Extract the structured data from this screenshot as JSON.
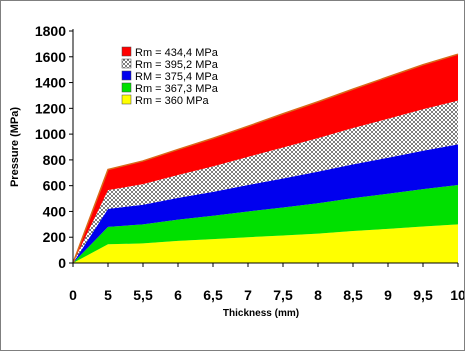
{
  "chart_data": {
    "type": "area",
    "title": "",
    "xlabel": "Thickness (mm)",
    "ylabel": "Pressure (MPa)",
    "stacking": "stacked",
    "x": [
      0,
      5,
      5.5,
      6,
      6.5,
      7,
      7.5,
      8,
      8.5,
      9,
      9.5,
      10
    ],
    "x_tick_labels": [
      "0",
      "5",
      "5,5",
      "6",
      "6,5",
      "7",
      "7,5",
      "8",
      "8,5",
      "9",
      "9,5",
      "10"
    ],
    "xlim": [
      0,
      10
    ],
    "ylim": [
      0,
      1800
    ],
    "y_ticks": [
      0,
      200,
      400,
      600,
      800,
      1000,
      1200,
      1400,
      1600,
      1800
    ],
    "grid": false,
    "legend_position": "top-left",
    "series": [
      {
        "name": "Rm = 360 MPa",
        "color": "#ffff00",
        "pattern": "solid",
        "values": [
          0,
          145,
          152,
          172,
          185,
          200,
          213,
          228,
          248,
          265,
          283,
          300
        ]
      },
      {
        "name": "Rm = 367,3 MPa",
        "color": "#00e000",
        "pattern": "solid",
        "values": [
          0,
          135,
          148,
          165,
          182,
          200,
          218,
          236,
          255,
          272,
          290,
          305
        ]
      },
      {
        "name": "RM = 375,4 MPa",
        "color": "#0000ee",
        "pattern": "solid",
        "values": [
          0,
          140,
          152,
          168,
          185,
          205,
          225,
          245,
          262,
          280,
          298,
          315
        ]
      },
      {
        "name": "Rm = 395,2 MPa",
        "color": "#ffffff",
        "pattern": "dotted",
        "values": [
          0,
          145,
          160,
          178,
          198,
          218,
          240,
          260,
          282,
          302,
          322,
          340
        ]
      },
      {
        "name": "Rm = 434,4 MPa",
        "color": "#ff0000",
        "pattern": "solid",
        "values": [
          0,
          160,
          180,
          198,
          218,
          238,
          262,
          282,
          302,
          325,
          345,
          360
        ]
      }
    ],
    "legend_order": [
      "Rm = 434,4 MPa",
      "Rm = 395,2 MPa",
      "RM = 375,4 MPa",
      "Rm = 367,3 MPa",
      "Rm = 360 MPa"
    ],
    "colors": {
      "outline": "#d96a1a",
      "axis": "#000000",
      "frame": "#7f7f7f"
    }
  }
}
